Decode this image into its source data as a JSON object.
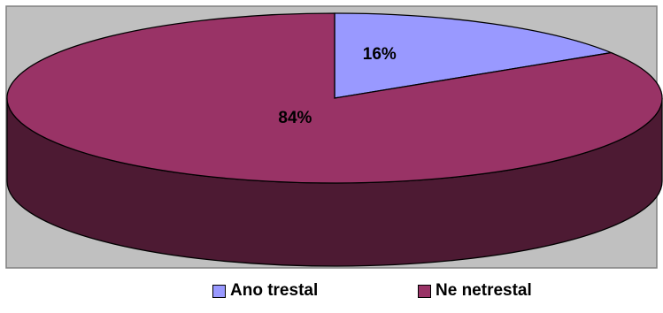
{
  "chart_data": {
    "type": "pie",
    "style": "3d",
    "title": "",
    "slices": [
      {
        "label": "Ano trestal",
        "value": 16,
        "data_label": "16%",
        "color": "#9999ff",
        "side_color": "#6b6bb3"
      },
      {
        "label": "Ne netrestal",
        "value": 84,
        "data_label": "84%",
        "color": "#993366",
        "side_color": "#4d1a33"
      }
    ],
    "legend_position": "bottom",
    "plot_area_background": "#c0c0c0"
  }
}
